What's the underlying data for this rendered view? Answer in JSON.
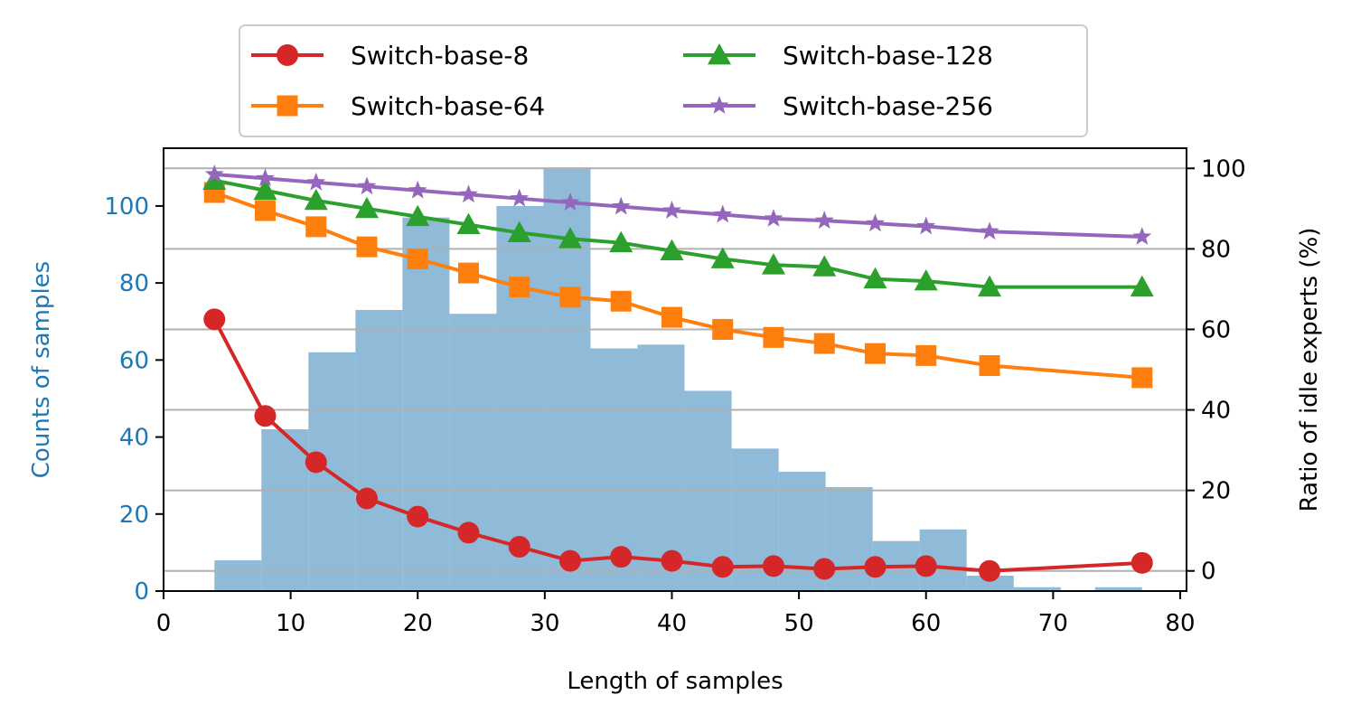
{
  "chart_data": {
    "type": "bar+line",
    "xlabel": "Length of samples",
    "ylabel_left": "Counts of samples",
    "ylabel_right": "Ratio of idle experts (%)",
    "xlim": [
      0,
      80.5
    ],
    "ylim_left": [
      0,
      115
    ],
    "ylim_right": [
      -5,
      105
    ],
    "x_ticks": [
      0,
      10,
      20,
      30,
      40,
      50,
      60,
      70,
      80
    ],
    "y_left_ticks": [
      0,
      20,
      40,
      60,
      80,
      100
    ],
    "y_right_ticks": [
      0,
      20,
      40,
      60,
      80,
      100
    ],
    "grid": "right-axis horizontal",
    "legend_position": "top-center (above plot)",
    "histogram": {
      "color": "#8fbbd9",
      "bins": [
        {
          "x0": 4,
          "x1": 7.7,
          "count": 8
        },
        {
          "x0": 7.7,
          "x1": 11.4,
          "count": 42
        },
        {
          "x0": 11.4,
          "x1": 15.1,
          "count": 62
        },
        {
          "x0": 15.1,
          "x1": 18.8,
          "count": 73
        },
        {
          "x0": 18.8,
          "x1": 22.5,
          "count": 97
        },
        {
          "x0": 22.5,
          "x1": 26.2,
          "count": 72
        },
        {
          "x0": 26.2,
          "x1": 29.9,
          "count": 100
        },
        {
          "x0": 29.9,
          "x1": 33.6,
          "count": 110
        },
        {
          "x0": 33.6,
          "x1": 37.3,
          "count": 63
        },
        {
          "x0": 37.3,
          "x1": 41.0,
          "count": 64
        },
        {
          "x0": 41.0,
          "x1": 44.7,
          "count": 52
        },
        {
          "x0": 44.7,
          "x1": 48.4,
          "count": 37
        },
        {
          "x0": 48.4,
          "x1": 52.1,
          "count": 31
        },
        {
          "x0": 52.1,
          "x1": 55.8,
          "count": 27
        },
        {
          "x0": 55.8,
          "x1": 59.5,
          "count": 13
        },
        {
          "x0": 59.5,
          "x1": 63.2,
          "count": 16
        },
        {
          "x0": 63.2,
          "x1": 66.9,
          "count": 4
        },
        {
          "x0": 66.9,
          "x1": 70.6,
          "count": 1
        },
        {
          "x0": 70.6,
          "x1": 73.3,
          "count": 0
        },
        {
          "x0": 73.3,
          "x1": 77.0,
          "count": 1
        }
      ]
    },
    "series": [
      {
        "name": "Switch-base-8",
        "color": "#d62728",
        "marker": "circle",
        "x": [
          4,
          8,
          12,
          16,
          20,
          24,
          28,
          32,
          36,
          40,
          44,
          48,
          52,
          56,
          60,
          65,
          77
        ],
        "values": [
          62.5,
          38.5,
          27,
          18,
          13.5,
          9.5,
          6,
          2.5,
          3.5,
          2.5,
          1,
          1.2,
          0.5,
          1,
          1.2,
          0,
          2
        ]
      },
      {
        "name": "Switch-base-64",
        "color": "#ff7f0e",
        "marker": "square",
        "x": [
          4,
          8,
          12,
          16,
          20,
          24,
          28,
          32,
          36,
          40,
          44,
          48,
          52,
          56,
          60,
          65,
          77
        ],
        "values": [
          94,
          89.5,
          85.5,
          80.5,
          77.5,
          74,
          70.5,
          68,
          67,
          63,
          60,
          58,
          56.5,
          54,
          53.5,
          51,
          48
        ]
      },
      {
        "name": "Switch-base-128",
        "color": "#2ca02c",
        "marker": "triangle",
        "x": [
          4,
          8,
          12,
          16,
          20,
          24,
          28,
          32,
          36,
          40,
          44,
          48,
          52,
          56,
          60,
          65,
          77
        ],
        "values": [
          97,
          94.5,
          92,
          90,
          88,
          86,
          84,
          82.5,
          81.5,
          79.5,
          77.5,
          76,
          75.5,
          72.5,
          72,
          70.5,
          70.5
        ]
      },
      {
        "name": "Switch-base-256",
        "color": "#9467bd",
        "marker": "star",
        "x": [
          4,
          8,
          12,
          16,
          20,
          24,
          28,
          32,
          36,
          40,
          44,
          48,
          52,
          56,
          60,
          65,
          77
        ],
        "values": [
          98.5,
          97.5,
          96.5,
          95.5,
          94.5,
          93.5,
          92.5,
          91.5,
          90.5,
          89.5,
          88.5,
          87.5,
          87,
          86.3,
          85.6,
          84.3,
          83
        ]
      }
    ]
  }
}
